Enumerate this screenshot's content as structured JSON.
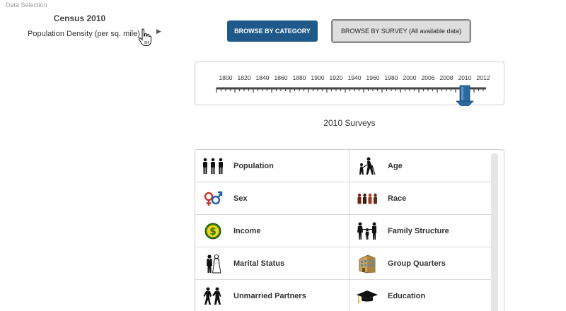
{
  "sidebar": {
    "section_label": "Data Selection",
    "census_title": "Census 2010",
    "census_subtitle": "Population Density (per sq. mile)"
  },
  "toolbar": {
    "browse_category_label": "BROWSE BY CATEGORY",
    "browse_survey_label": "BROWSE BY SURVEY (All available data)"
  },
  "timeline": {
    "years": [
      "1800",
      "1820",
      "1840",
      "1860",
      "1880",
      "1900",
      "1920",
      "1940",
      "1960",
      "1980",
      "2000",
      "2006",
      "2008",
      "2010",
      "2012"
    ],
    "selected_year": "2010",
    "marker_color": "#2a6aa0"
  },
  "surveys": {
    "title": "2010 Surveys",
    "items": [
      {
        "label": "Population",
        "icon": "population-icon"
      },
      {
        "label": "Age",
        "icon": "age-icon"
      },
      {
        "label": "Sex",
        "icon": "sex-icon"
      },
      {
        "label": "Race",
        "icon": "race-icon"
      },
      {
        "label": "Income",
        "icon": "income-icon"
      },
      {
        "label": "Family Structure",
        "icon": "family-structure-icon"
      },
      {
        "label": "Marital Status",
        "icon": "marital-status-icon"
      },
      {
        "label": "Group Quarters",
        "icon": "group-quarters-icon"
      },
      {
        "label": "Unmarried Partners",
        "icon": "unmarried-partners-icon"
      },
      {
        "label": "Education",
        "icon": "education-icon"
      }
    ]
  },
  "colors": {
    "primary_button": "#1e5989",
    "income_green": "#3a8a1e",
    "race_red": "#8b2a1e"
  }
}
